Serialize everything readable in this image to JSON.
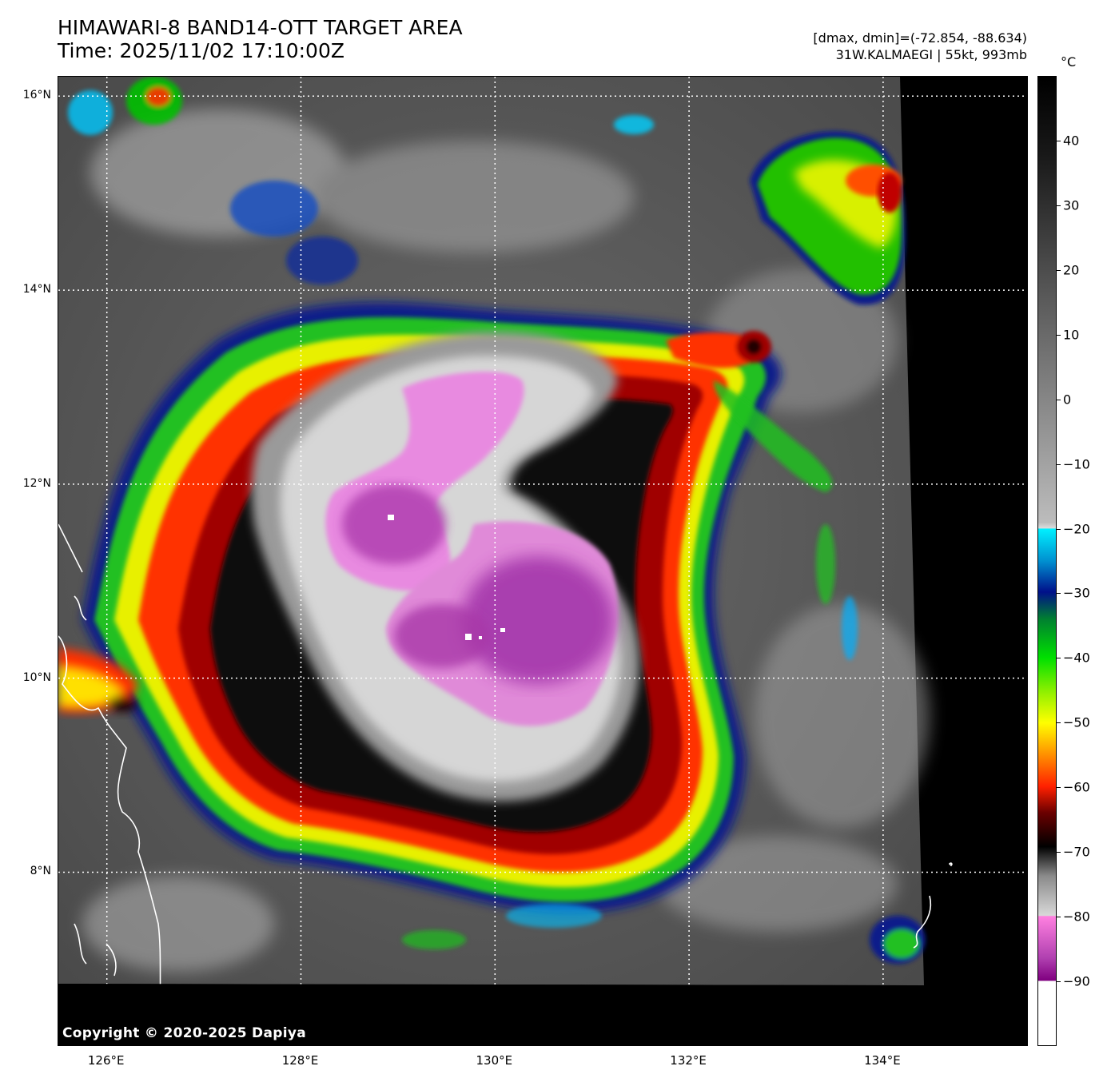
{
  "title": {
    "line1": "HIMAWARI-8 BAND14-OTT TARGET AREA",
    "line2": "Time: 2025/11/02 17:10:00Z"
  },
  "meta": {
    "line1": "[dmax, dmin]=(-72.854, -88.634)",
    "line2": "31W.KALMAEGI | 55kt, 993mb"
  },
  "copyright": "Copyright © 2020-2025 Dapiya",
  "map": {
    "lat_labels": [
      "16°N",
      "14°N",
      "12°N",
      "10°N",
      "8°N"
    ],
    "lon_labels": [
      "126°E",
      "128°E",
      "130°E",
      "132°E",
      "134°E"
    ],
    "lat_values": [
      16,
      14,
      12,
      10,
      8
    ],
    "lon_values": [
      126,
      128,
      130,
      132,
      134
    ],
    "lat_range": [
      6.2,
      16.2
    ],
    "lon_range": [
      125.5,
      135.5
    ],
    "storm_center": {
      "lat": 11.0,
      "lon": 130.4
    }
  },
  "colorbar": {
    "unit": "°C",
    "range": [
      -100,
      50
    ],
    "tick_values": [
      40,
      30,
      20,
      10,
      0,
      -10,
      -20,
      -30,
      -40,
      -50,
      -60,
      -70,
      -80,
      -90
    ],
    "tick_labels": [
      "40",
      "30",
      "20",
      "10",
      "0",
      "−10",
      "−20",
      "−30",
      "−40",
      "−50",
      "−60",
      "−70",
      "−80",
      "−90"
    ]
  }
}
